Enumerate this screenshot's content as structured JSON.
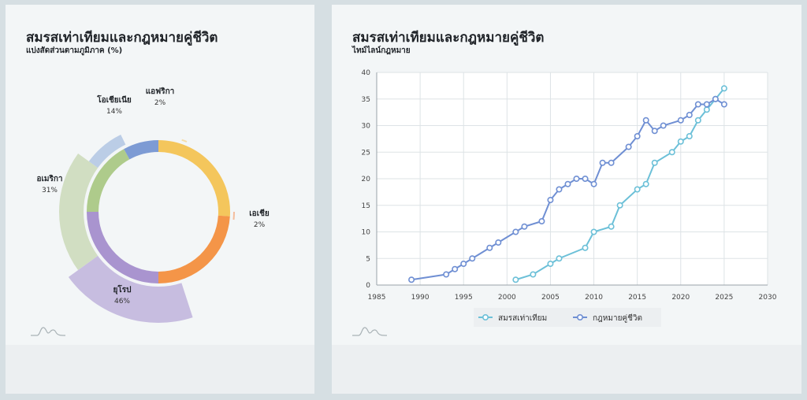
{
  "left_panel": {
    "title": "สมรสเท่าเทียมและกฎหมายคู่ชีวิต",
    "subtitle": "แบ่งสัดส่วนตามภูมิภาค (%)"
  },
  "right_panel": {
    "title": "สมรสเท่าเทียมและกฎหมายคู่ชีวิต",
    "subtitle": "ไทม์ไลน์กฎหมาย"
  },
  "chart_data": [
    {
      "type": "pie",
      "variant": "donut-with-radial-bars",
      "title": "สมรสเท่าเทียมและกฎหมายคู่ชีวิต",
      "subtitle": "แบ่งสัดส่วนตามภูมิภาค (%)",
      "slices": [
        {
          "label": "เอเชีย",
          "value": 2,
          "value_label": "2%",
          "color": "#f4a97d"
        },
        {
          "label": "ยุโรป",
          "value": 46,
          "value_label": "46%",
          "color": "#b8aad8"
        },
        {
          "label": "อเมริกา",
          "value": 31,
          "value_label": "31%",
          "color": "#c5d6b0"
        },
        {
          "label": "โอเชียเนีย",
          "value": 14,
          "value_label": "14%",
          "color": "#a8bfe0"
        },
        {
          "label": "แอฟริกา",
          "value": 2,
          "value_label": "2%",
          "color": "#f6d48c"
        }
      ],
      "ring_segments": [
        {
          "color": "#f4c65c",
          "value": 26
        },
        {
          "color": "#f49548",
          "value": 24
        },
        {
          "color": "#a994cf",
          "value": 25
        },
        {
          "color": "#aecb8b",
          "value": 17
        },
        {
          "color": "#7d9bd4",
          "value": 8
        }
      ]
    },
    {
      "type": "line",
      "title": "สมรสเท่าเทียมและกฎหมายคู่ชีวิต",
      "subtitle": "ไทม์ไลน์กฎหมาย",
      "xlim": [
        1985,
        2030
      ],
      "ylim": [
        0,
        40
      ],
      "xticks": [
        1985,
        1990,
        1995,
        2000,
        2005,
        2010,
        2015,
        2020,
        2025,
        2030
      ],
      "yticks": [
        0,
        5,
        10,
        15,
        20,
        25,
        30,
        35,
        40
      ],
      "grid": true,
      "legend_position": "bottom",
      "series": [
        {
          "name": "สมรสเท่าเทียม",
          "color": "#6cc0d8",
          "x": [
            2001,
            2003,
            2005,
            2006,
            2009,
            2010,
            2012,
            2013,
            2015,
            2016,
            2017,
            2019,
            2020,
            2021,
            2022,
            2023,
            2024,
            2025
          ],
          "y": [
            1,
            2,
            4,
            5,
            7,
            10,
            11,
            15,
            18,
            19,
            23,
            25,
            27,
            28,
            31,
            33,
            35,
            37
          ]
        },
        {
          "name": "กฎหมายคู่ชีวิต",
          "color": "#6f8fd3",
          "x": [
            1989,
            1993,
            1994,
            1995,
            1996,
            1998,
            1999,
            2001,
            2002,
            2004,
            2005,
            2006,
            2007,
            2008,
            2009,
            2010,
            2011,
            2012,
            2014,
            2015,
            2016,
            2017,
            2018,
            2020,
            2021,
            2022,
            2023,
            2024,
            2025
          ],
          "y": [
            1,
            2,
            3,
            4,
            5,
            7,
            8,
            10,
            11,
            12,
            16,
            18,
            19,
            20,
            20,
            19,
            23,
            23,
            26,
            28,
            31,
            29,
            30,
            31,
            32,
            34,
            34,
            35,
            34
          ]
        }
      ]
    }
  ]
}
